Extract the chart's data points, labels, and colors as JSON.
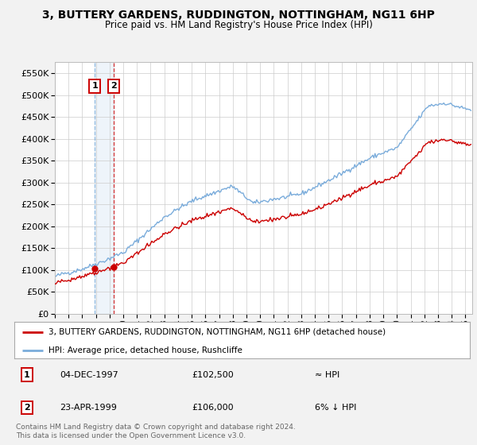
{
  "title": "3, BUTTERY GARDENS, RUDDINGTON, NOTTINGHAM, NG11 6HP",
  "subtitle": "Price paid vs. HM Land Registry's House Price Index (HPI)",
  "sale1_date": "04-DEC-1997",
  "sale1_price": 102500,
  "sale1_label": "1",
  "sale1_year": 1997.92,
  "sale2_date": "23-APR-1999",
  "sale2_price": 106000,
  "sale2_label": "2",
  "sale2_year": 1999.31,
  "legend_property": "3, BUTTERY GARDENS, RUDDINGTON, NOTTINGHAM, NG11 6HP (detached house)",
  "legend_hpi": "HPI: Average price, detached house, Rushcliffe",
  "footer1": "Contains HM Land Registry data © Crown copyright and database right 2024.",
  "footer2": "This data is licensed under the Open Government Licence v3.0.",
  "sale1_note": "≈ HPI",
  "sale2_note": "6% ↓ HPI",
  "ylim": [
    0,
    575000
  ],
  "xlim_start": 1995.0,
  "xlim_end": 2025.5,
  "hpi_color": "#7aacdb",
  "property_color": "#cc0000",
  "bg_color": "#f2f2f2",
  "plot_bg": "#ffffff",
  "grid_color": "#cccccc"
}
